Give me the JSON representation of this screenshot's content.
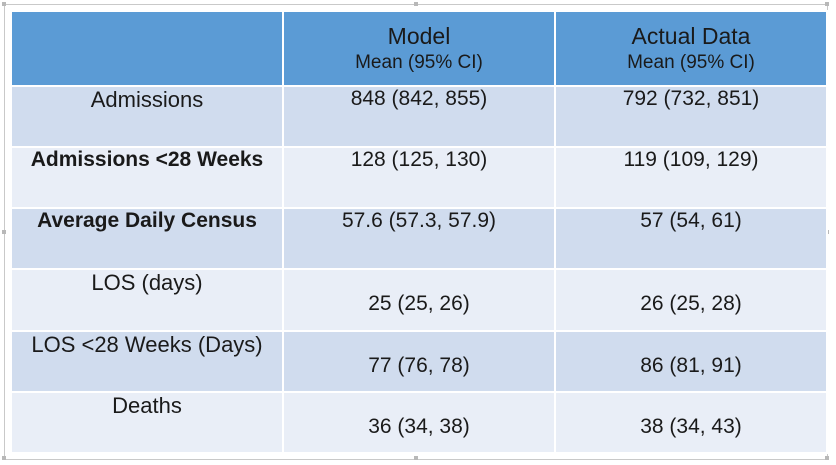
{
  "table": {
    "header": {
      "col1": "",
      "col2_title": "Model",
      "col2_sub": "Mean (95% CI)",
      "col3_title": "Actual Data",
      "col3_sub": "Mean (95% CI)"
    },
    "rows": [
      {
        "label": "Admissions",
        "model": "848 (842, 855)",
        "actual": "792 (732, 851)"
      },
      {
        "label": "Admissions <28 Weeks",
        "model": "128 (125, 130)",
        "actual": "119 (109, 129)"
      },
      {
        "label": "Average Daily Census",
        "model": "57.6 (57.3, 57.9)",
        "actual": "57 (54, 61)"
      },
      {
        "label": "LOS (days)",
        "model": "25 (25, 26)",
        "actual": "26 (25, 28)"
      },
      {
        "label": "LOS <28 Weeks (Days)",
        "model": "77 (76, 78)",
        "actual": "86 (81, 91)"
      },
      {
        "label": "Deaths",
        "model": "36 (34, 38)",
        "actual": "38 (34, 43)"
      }
    ]
  },
  "colors": {
    "header_bg": "#5b9bd5",
    "row_dark": "#d0dcee",
    "row_light": "#e9eef7"
  }
}
